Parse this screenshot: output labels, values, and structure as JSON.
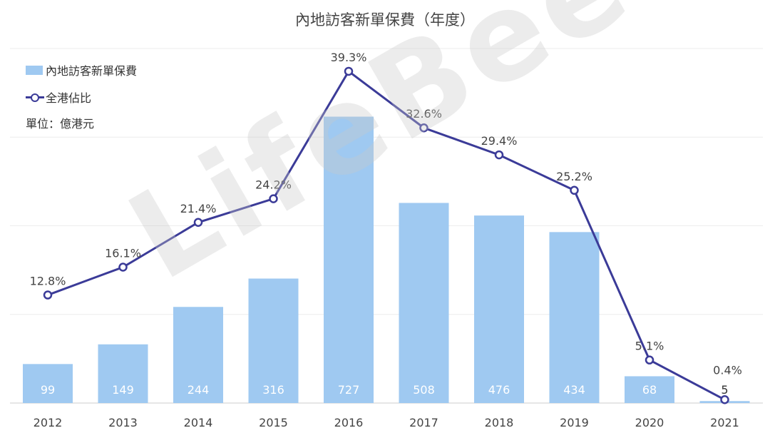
{
  "chart_data": {
    "type": "bar+line",
    "title": "內地訪客新單保費（年度）",
    "categories": [
      "2012",
      "2013",
      "2014",
      "2015",
      "2016",
      "2017",
      "2018",
      "2019",
      "2020",
      "2021"
    ],
    "series": [
      {
        "name": "內地訪客新單保費",
        "type": "bar",
        "color": "#9fc9f1",
        "values": [
          99,
          149,
          244,
          316,
          727,
          508,
          476,
          434,
          68,
          5
        ],
        "value_labels": [
          "99",
          "149",
          "244",
          "316",
          "727",
          "508",
          "476",
          "434",
          "68",
          "5"
        ]
      },
      {
        "name": "全港佔比",
        "type": "line",
        "color": "#3b3b98",
        "values": [
          12.8,
          16.1,
          21.4,
          24.2,
          39.3,
          32.6,
          29.4,
          25.2,
          5.1,
          0.4
        ],
        "value_labels": [
          "12.8%",
          "16.1%",
          "21.4%",
          "24.2%",
          "39.3%",
          "32.6%",
          "29.4%",
          "25.2%",
          "5.1%",
          "0.4%"
        ]
      }
    ],
    "unit_note": "單位：億港元",
    "ylim_bar": [
      0,
      900
    ],
    "ylim_line": [
      0,
      42
    ],
    "grid": true,
    "legend": "top-left"
  },
  "watermark": "LifeBee"
}
